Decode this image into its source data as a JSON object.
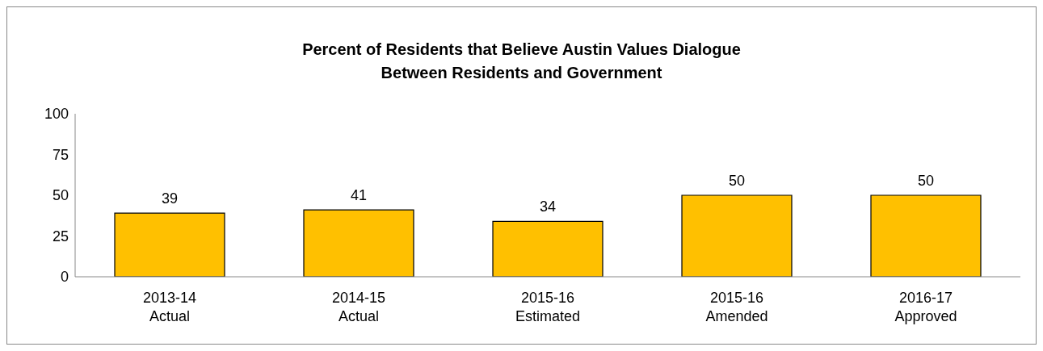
{
  "chart_data": {
    "type": "bar",
    "title": "Percent of Residents that Believe Austin Values Dialogue\nBetween Residents and Government",
    "categories": [
      "2013-14\nActual",
      "2014-15\nActual",
      "2015-16\nEstimated",
      "2015-16\nAmended",
      "2016-17\nApproved"
    ],
    "values": [
      39,
      41,
      34,
      50,
      50
    ],
    "color": "#ffc000",
    "ylim": [
      0,
      100
    ],
    "yticks": [
      0,
      25,
      50,
      75,
      100
    ],
    "grid": false,
    "legend": false,
    "data_labels": true
  }
}
